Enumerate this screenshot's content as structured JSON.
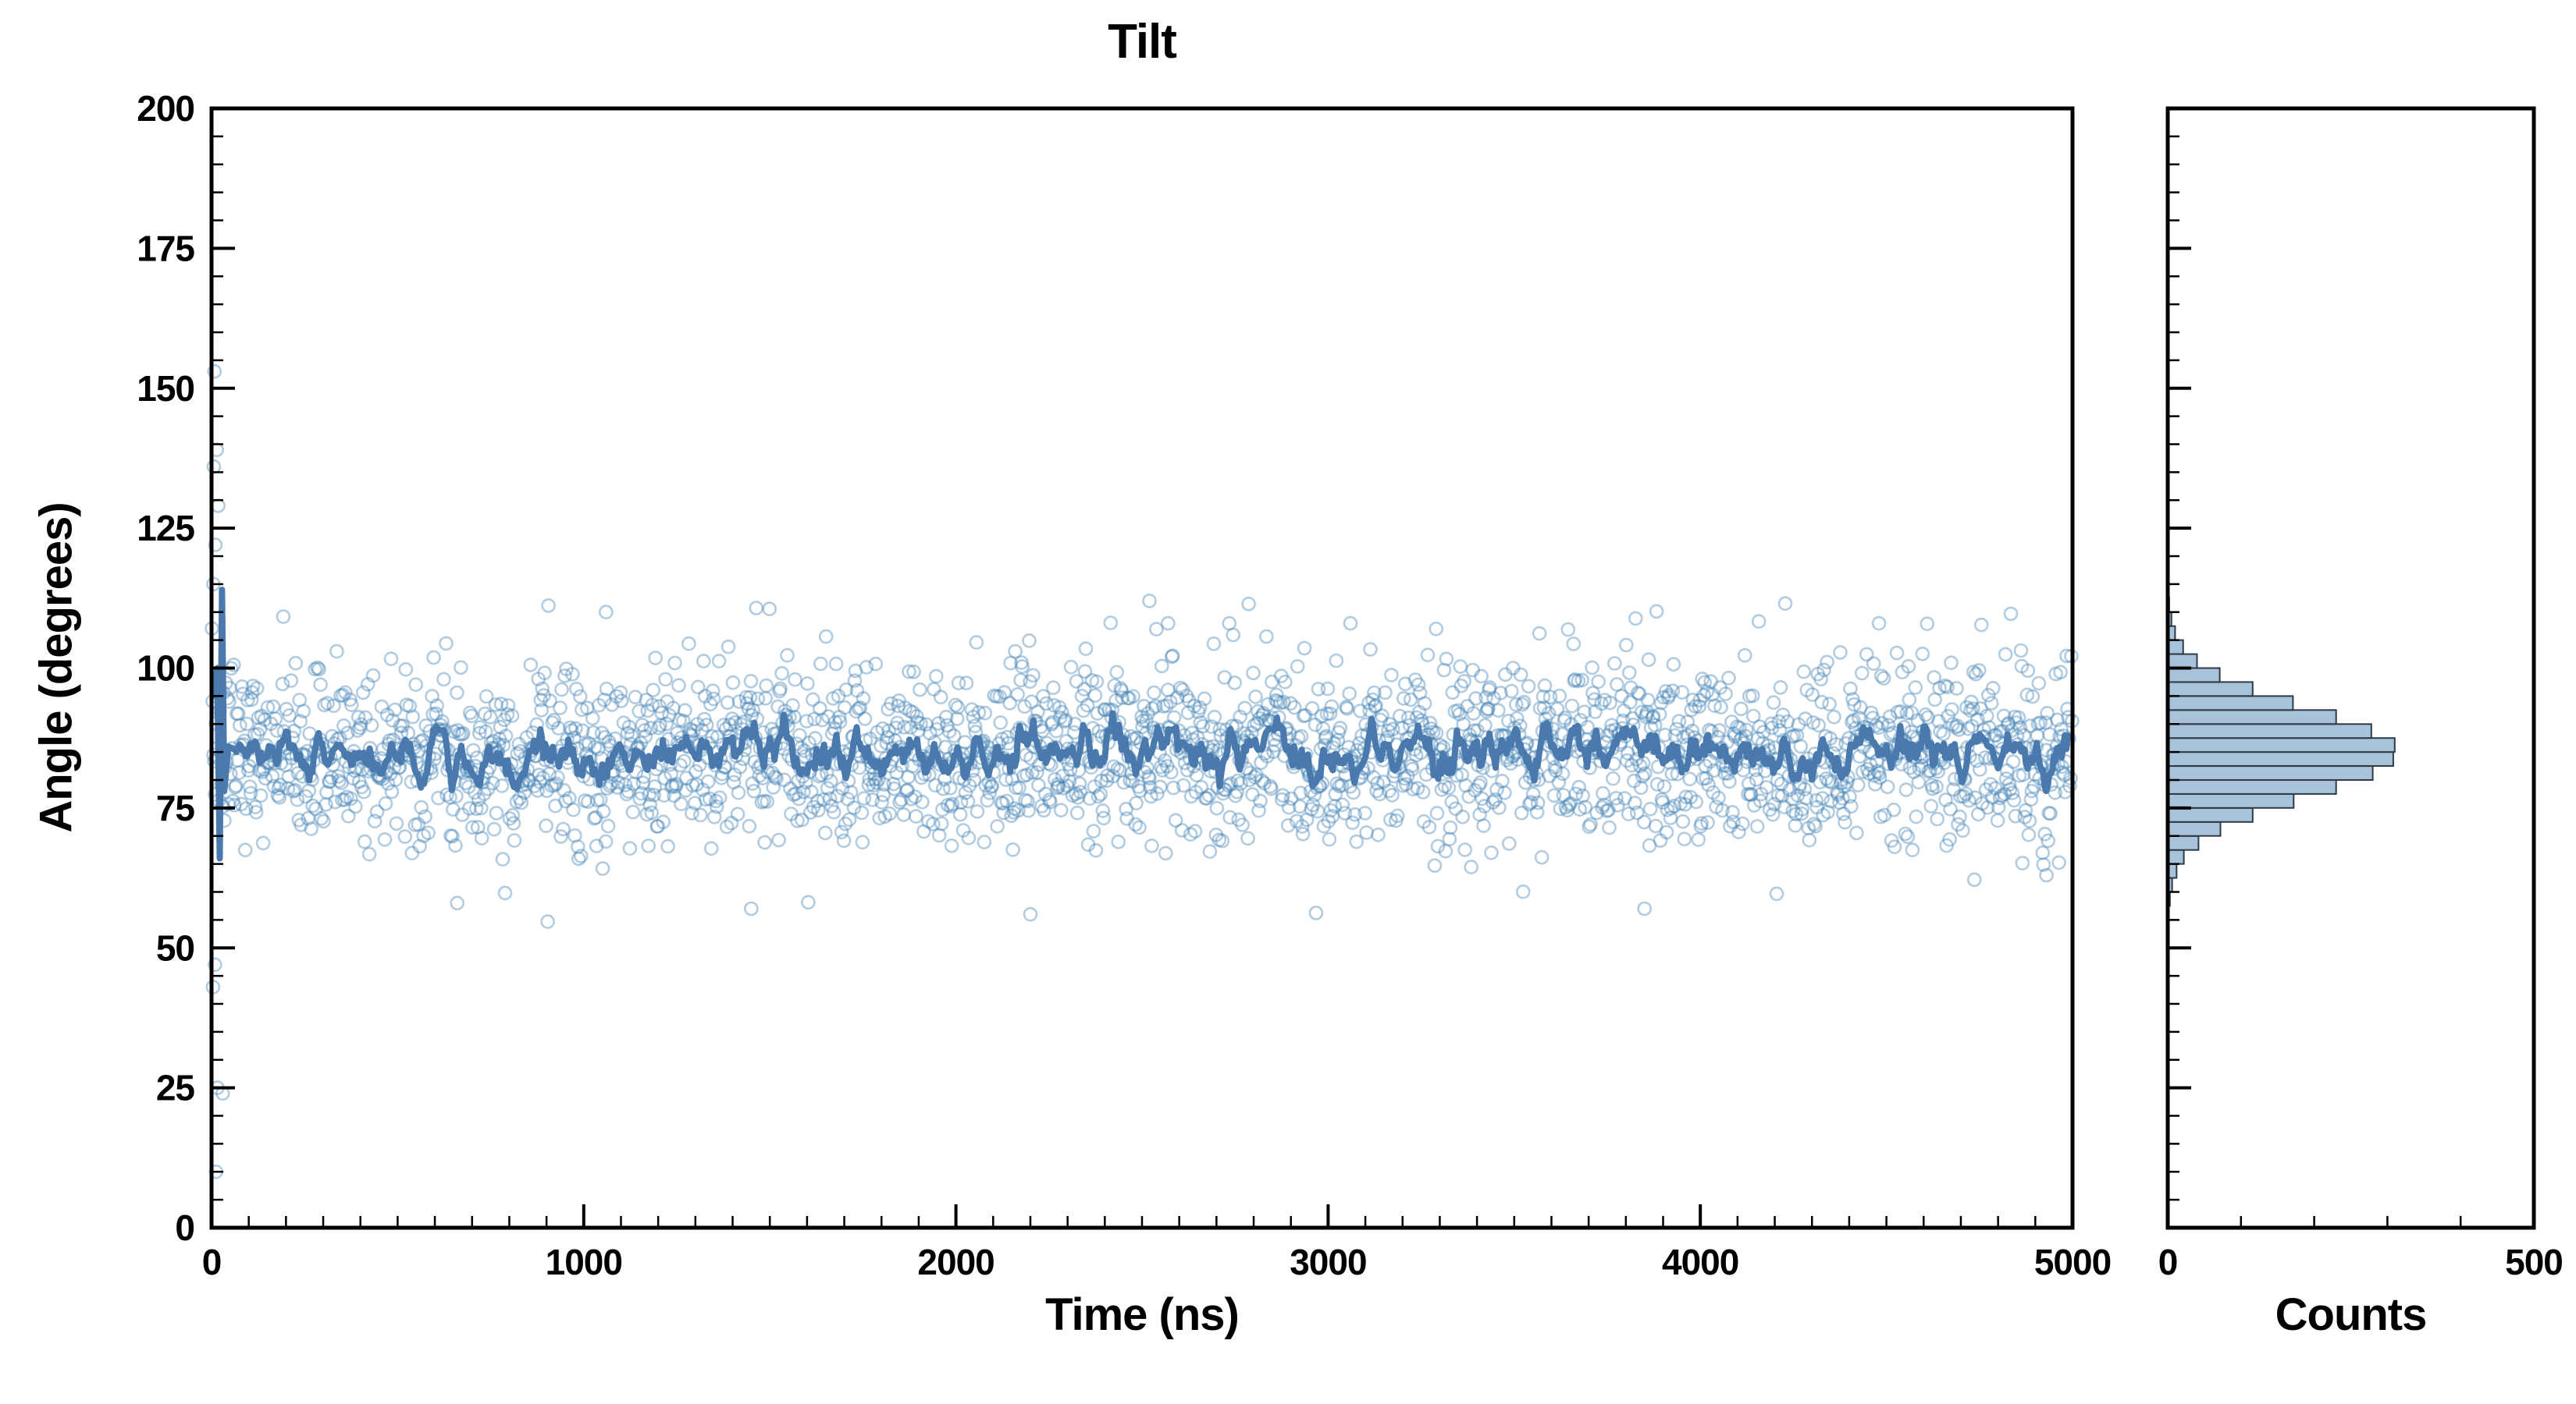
{
  "page": {
    "background": "#ffffff"
  },
  "chart_data": {
    "type": "scatter",
    "title": "Tilt",
    "xlabel": "Time (ns)",
    "ylabel": "Angle (degrees)",
    "xlim": [
      0,
      5000
    ],
    "ylim": [
      0,
      200
    ],
    "x_major_ticks": [
      0,
      1000,
      2000,
      3000,
      4000,
      5000
    ],
    "x_minor_step": 100,
    "y_major_ticks": [
      0,
      25,
      50,
      75,
      100,
      125,
      150,
      175,
      200
    ],
    "y_minor_step": 5,
    "grid": false,
    "scatter": {
      "n_points": 2400,
      "mean_angle": 85,
      "std_angle": 8,
      "seed": 7,
      "marker": "open-circle",
      "color": "#4682b4",
      "opacity": 0.42
    },
    "initial_transient_points": [
      [
        8,
        153
      ],
      [
        14,
        139
      ],
      [
        6,
        136
      ],
      [
        18,
        129
      ],
      [
        10,
        122
      ],
      [
        5,
        115
      ],
      [
        9,
        47
      ],
      [
        4,
        43
      ],
      [
        16,
        25
      ],
      [
        12,
        10
      ],
      [
        30,
        24
      ]
    ],
    "sparse_outliers": [
      [
        660,
        58
      ],
      [
        1060,
        110
      ],
      [
        1450,
        57
      ],
      [
        2200,
        56
      ],
      [
        2520,
        112
      ],
      [
        2570,
        108
      ],
      [
        3060,
        108
      ],
      [
        3290,
        107
      ],
      [
        3850,
        57
      ],
      [
        4480,
        108
      ],
      [
        4930,
        63
      ]
    ],
    "rolling_mean": {
      "window": 12,
      "color": "#4a7aad",
      "initial_spike": [
        [
          5,
          95
        ],
        [
          15,
          100
        ],
        [
          22,
          66
        ],
        [
          28,
          114
        ],
        [
          34,
          78
        ],
        [
          45,
          86
        ]
      ]
    },
    "histogram": {
      "xlabel": "Counts",
      "xlim": [
        0,
        500
      ],
      "x_major_ticks": [
        0,
        500
      ],
      "x_minor_step": 100,
      "orientation": "horizontal",
      "bin_start": 55,
      "bin_width": 2.5,
      "counts": [
        1,
        3,
        6,
        12,
        22,
        42,
        72,
        116,
        172,
        230,
        280,
        308,
        310,
        278,
        230,
        171,
        116,
        71,
        40,
        21,
        10,
        5,
        2,
        1
      ],
      "fill": "#a8c2da",
      "edge": "#2d3a47"
    }
  }
}
